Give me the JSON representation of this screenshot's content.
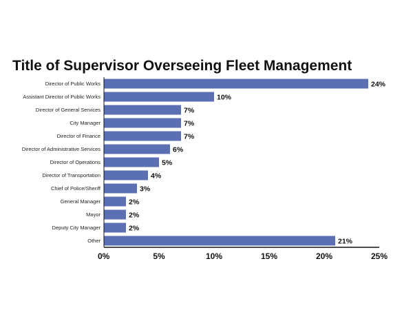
{
  "chart_data": {
    "type": "bar",
    "orientation": "horizontal",
    "title": "Title of Supervisor Overseeing Fleet Management",
    "xlabel": "",
    "ylabel": "",
    "categories": [
      "Director of Public Works",
      "Assistant Director of Public Works",
      "Director of General Services",
      "City Manager",
      "Director of Finance",
      "Director of Administrative Services",
      "Director of Operations",
      "Director of Transportation",
      "Chief of Police/Sheriff",
      "General Manager",
      "Mayor",
      "Deputy City Manager",
      "Other"
    ],
    "values": [
      24,
      10,
      7,
      7,
      7,
      6,
      5,
      4,
      3,
      2,
      2,
      2,
      21
    ],
    "value_labels": [
      "24%",
      "10%",
      "7%",
      "7%",
      "7%",
      "6%",
      "5%",
      "4%",
      "3%",
      "2%",
      "2%",
      "2%",
      "21%"
    ],
    "xlim": [
      0,
      25
    ],
    "xticks": [
      0,
      5,
      10,
      15,
      20,
      25
    ],
    "xtick_labels": [
      "0%",
      "5%",
      "10%",
      "15%",
      "20%",
      "25%"
    ],
    "grid": false,
    "legend": "none",
    "bar_color": "#5b6fb3"
  }
}
